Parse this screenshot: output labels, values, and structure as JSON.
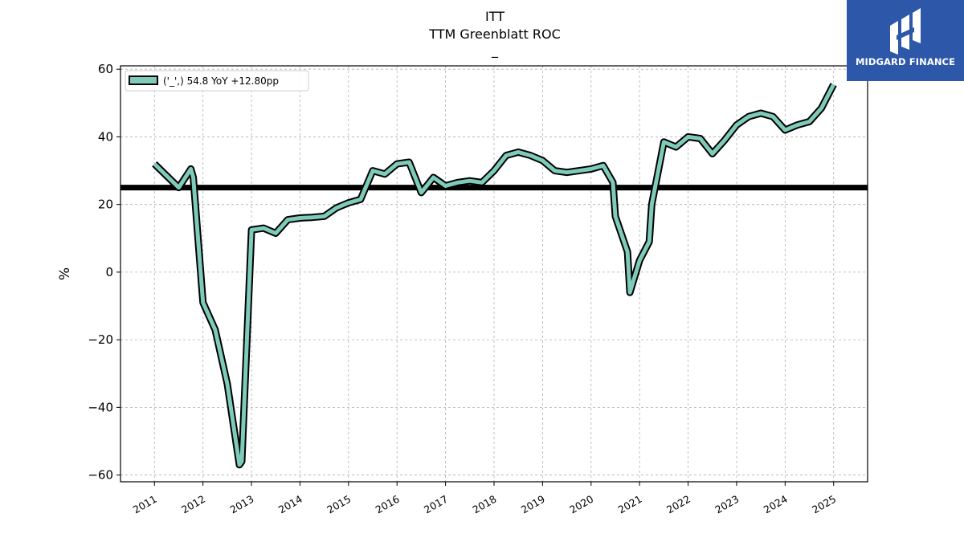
{
  "chart_data": {
    "type": "line",
    "title": "ITT",
    "subtitle": "TTM Greenblatt ROC",
    "subtitle2": "_",
    "ylabel": "%",
    "xlabel": "",
    "ylim": [
      -62,
      61
    ],
    "xlim": [
      2010.3,
      2025.7
    ],
    "yticks": [
      -60,
      -40,
      -20,
      0,
      20,
      40,
      60
    ],
    "xticks": [
      "2011",
      "2012",
      "2013",
      "2014",
      "2015",
      "2016",
      "2017",
      "2018",
      "2019",
      "2020",
      "2021",
      "2022",
      "2023",
      "2024",
      "2025"
    ],
    "grid": true,
    "legend_position": "top-left",
    "reference_line": 25,
    "series": [
      {
        "name": "('_',) 54.8 YoY +12.80pp",
        "color": "#7ecbb9",
        "x": [
          2011.0,
          2011.25,
          2011.5,
          2011.75,
          2011.8,
          2012.0,
          2012.25,
          2012.5,
          2012.75,
          2012.8,
          2013.0,
          2013.25,
          2013.5,
          2013.75,
          2014.0,
          2014.25,
          2014.5,
          2014.75,
          2015.0,
          2015.25,
          2015.5,
          2015.75,
          2016.0,
          2016.25,
          2016.5,
          2016.75,
          2017.0,
          2017.25,
          2017.5,
          2017.75,
          2018.0,
          2018.25,
          2018.5,
          2018.75,
          2019.0,
          2019.25,
          2019.5,
          2019.75,
          2020.0,
          2020.25,
          2020.45,
          2020.5,
          2020.75,
          2020.8,
          2021.0,
          2021.2,
          2021.25,
          2021.5,
          2021.75,
          2022.0,
          2022.25,
          2022.5,
          2022.75,
          2023.0,
          2023.25,
          2023.5,
          2023.75,
          2024.0,
          2024.25,
          2024.5,
          2024.75,
          2025.0
        ],
        "values": [
          32.0,
          28.5,
          25.0,
          30.5,
          28.0,
          -9.0,
          -17.0,
          -33.0,
          -57.0,
          -56.0,
          12.5,
          13.0,
          11.5,
          15.5,
          16.0,
          16.2,
          16.5,
          19.0,
          20.5,
          21.5,
          30.0,
          29.0,
          32.0,
          32.5,
          23.5,
          28.0,
          25.5,
          26.5,
          27.0,
          26.5,
          30.0,
          34.5,
          35.5,
          34.5,
          33.0,
          30.0,
          29.5,
          30.0,
          30.5,
          31.5,
          26.5,
          16.5,
          6.0,
          -6.0,
          3.5,
          9.0,
          20.0,
          38.5,
          37.0,
          40.0,
          39.5,
          35.0,
          39.0,
          43.5,
          46.0,
          47.0,
          46.0,
          42.0,
          43.5,
          44.5,
          48.5,
          55.5
        ]
      }
    ]
  },
  "logo": {
    "text": "MIDGARD FINANCE"
  }
}
